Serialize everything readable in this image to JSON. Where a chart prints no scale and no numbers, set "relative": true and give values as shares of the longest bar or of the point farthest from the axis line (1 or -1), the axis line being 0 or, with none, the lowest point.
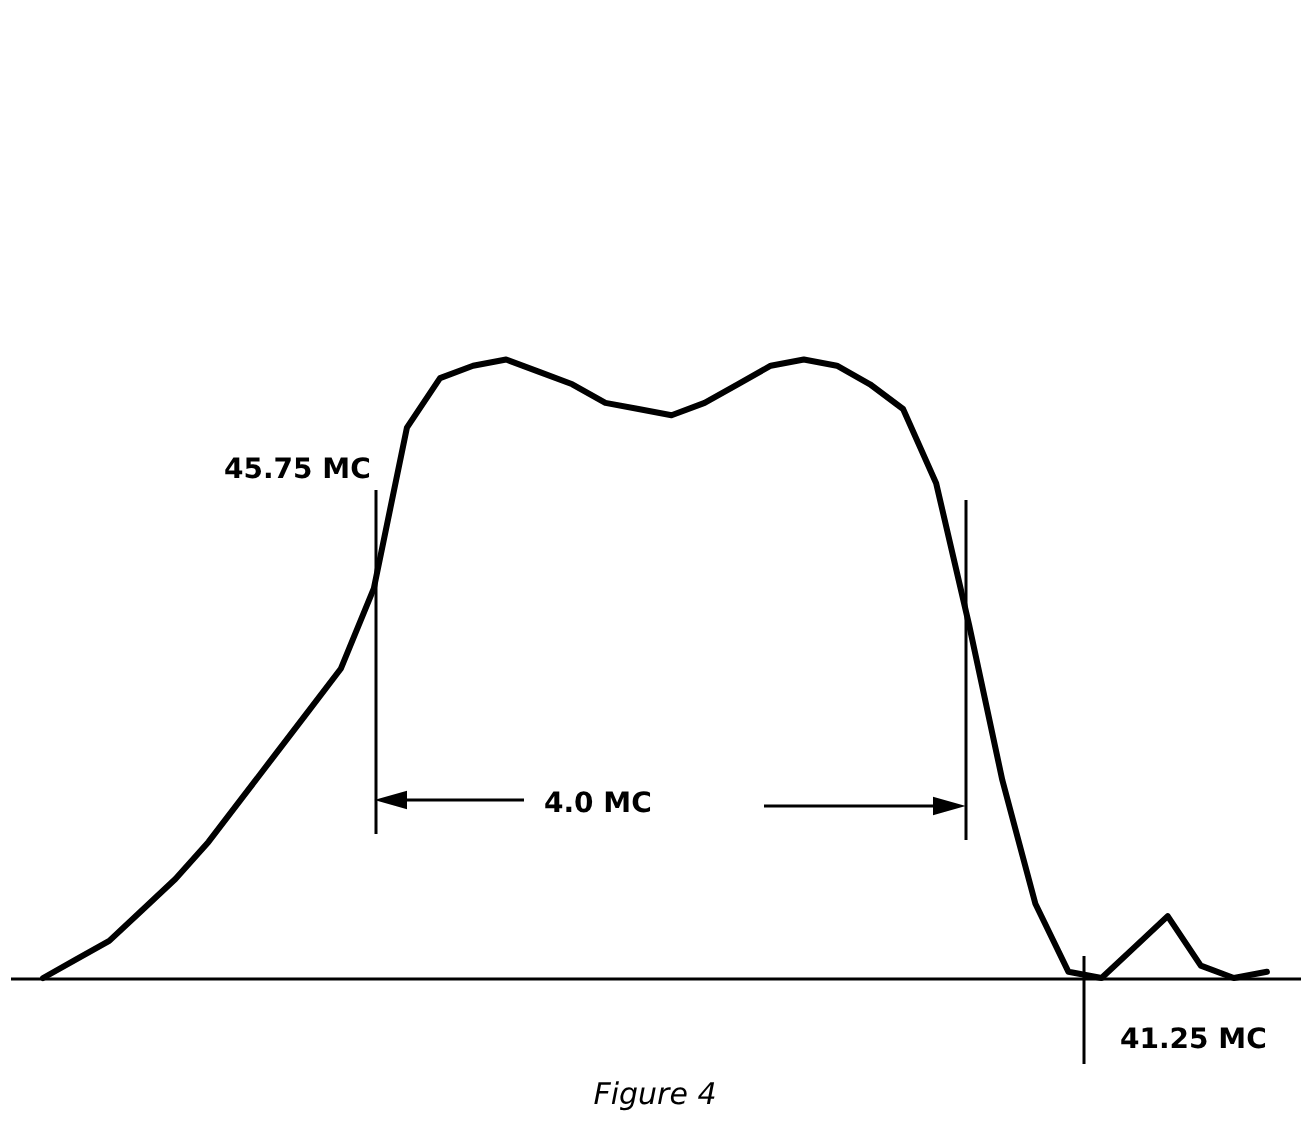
{
  "chart_data": {
    "type": "line",
    "relative": true,
    "categories": [
      null,
      null,
      null,
      null,
      null,
      null,
      null,
      null,
      null,
      null,
      null,
      null,
      null,
      null,
      null,
      null,
      null,
      null,
      null,
      null,
      null,
      null,
      null,
      null,
      null,
      null,
      null,
      null,
      null,
      null,
      null,
      null,
      null,
      null,
      null,
      null,
      null,
      null
    ],
    "series": [
      {
        "color": "#000000",
        "values": [
          0,
          0.03,
          0.06,
          0.11,
          0.16,
          0.22,
          0.29,
          0.36,
          0.43,
          0.5,
          0.63,
          0.89,
          0.97,
          0.99,
          1,
          0.98,
          0.96,
          0.93,
          0.92,
          0.91,
          0.93,
          0.96,
          0.99,
          1,
          0.99,
          0.96,
          0.92,
          0.8,
          0.57,
          0.32,
          0.12,
          0.01,
          0,
          0.05,
          0.1,
          0.02,
          0,
          0.01
        ]
      }
    ],
    "annotations": [
      "45.75 MC",
      "4.0 MC",
      "41.25 MC",
      "Figure 4"
    ]
  }
}
